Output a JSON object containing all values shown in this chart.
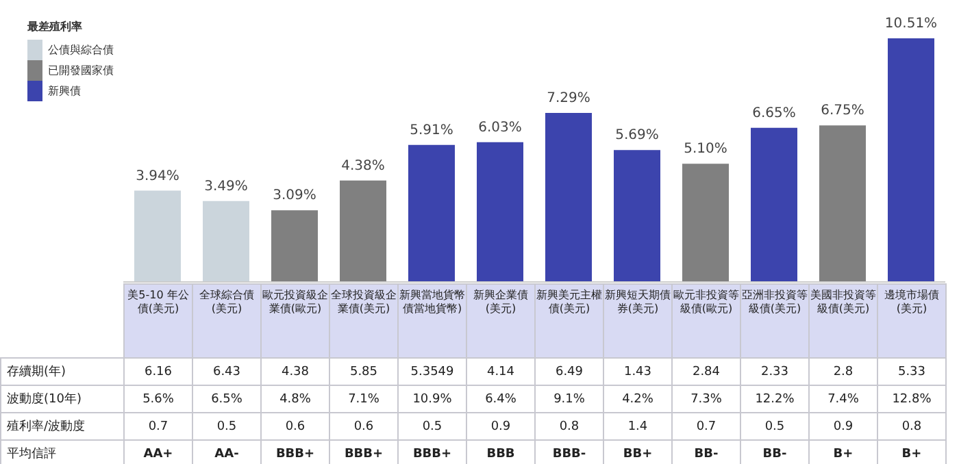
{
  "chart_data": {
    "type": "bar",
    "stacked": true,
    "legend": "top left",
    "legend_title": "最差殖利率",
    "categories": [
      "美5-10 年公債(美元)",
      "全球綜合債(美元)",
      "歐元投資級企業債(歐元)",
      "全球投資級企業債(美元)",
      "新興當地貨幣債當地貨幣)",
      "新興企業債(美元)",
      "新興美元主權債(美元)",
      "新興短天期債券(美元)",
      "歐元非投資等級債(歐元)",
      "亞洲非投資等級債(美元)",
      "美國非投資等級債(美元)",
      "邊境市場債(美元)"
    ],
    "series": [
      {
        "name": "公債與綜合債",
        "color": "#cbd5dc",
        "values": [
          3.94,
          3.49,
          null,
          null,
          null,
          null,
          null,
          null,
          null,
          null,
          null,
          null
        ],
        "value_labels": [
          "3.94%",
          "3.49%",
          null,
          null,
          null,
          null,
          null,
          null,
          null,
          null,
          null,
          null
        ]
      },
      {
        "name": "已開發國家債",
        "color": "#808080",
        "values": [
          null,
          null,
          3.09,
          4.38,
          null,
          null,
          null,
          null,
          5.1,
          null,
          6.75,
          null
        ],
        "value_labels": [
          null,
          null,
          "3.09%",
          "4.38%",
          null,
          null,
          null,
          null,
          "5.10%",
          null,
          "6.75%",
          null
        ]
      },
      {
        "name": "新興債",
        "color": "#3c44ad",
        "values": [
          null,
          null,
          null,
          null,
          5.91,
          6.03,
          7.29,
          5.69,
          null,
          6.65,
          null,
          10.51
        ],
        "value_labels": [
          null,
          null,
          null,
          null,
          "5.91%",
          "6.03%",
          "7.29%",
          "5.69%",
          null,
          "6.65%",
          null,
          "10.51%"
        ]
      }
    ],
    "annotations": [
      "存續期(年)",
      "6.16",
      "6.43",
      "4.38",
      "5.85",
      "5.3549",
      "4.14",
      "6.49",
      "1.43",
      "2.84",
      "2.33",
      "2.8",
      "5.33",
      "波動度(10年)",
      "5.6%",
      "6.5%",
      "4.8%",
      "7.1%",
      "10.9%",
      "6.4%",
      "9.1%",
      "4.2%",
      "7.3%",
      "12.2%",
      "7.4%",
      "12.8%",
      "殖利率/波動度",
      "0.7",
      "0.5",
      "0.6",
      "0.6",
      "0.5",
      "0.9",
      "0.8",
      "1.4",
      "0.7",
      "0.5",
      "0.9",
      "0.8",
      "平均信評",
      "AA+",
      "AA-",
      "BBB+",
      "BBB+",
      "BBB+",
      "BBB",
      "BBB-",
      "BB+",
      "BB-",
      "BB-",
      "B+",
      "B+"
    ]
  }
}
